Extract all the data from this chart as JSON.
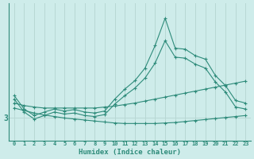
{
  "xlabel": "Humidex (Indice chaleur)",
  "background_color": "#ceecea",
  "line_color": "#2e8b7a",
  "grid_color": "#b8d8d4",
  "x_values": [
    0,
    1,
    2,
    3,
    4,
    5,
    6,
    7,
    8,
    9,
    10,
    11,
    12,
    13,
    14,
    15,
    16,
    17,
    18,
    19,
    20,
    21,
    22,
    23
  ],
  "ytick_labels": [
    "3"
  ],
  "ytick_positions": [
    3.0
  ],
  "series": {
    "curve_max": [
      3.45,
      3.18,
      3.05,
      3.12,
      3.18,
      3.14,
      3.17,
      3.12,
      3.1,
      3.14,
      3.38,
      3.58,
      3.75,
      4.0,
      4.45,
      5.0,
      4.4,
      4.38,
      4.25,
      4.18,
      3.85,
      3.65,
      3.35,
      3.3
    ],
    "curve_mid": [
      3.38,
      3.12,
      2.98,
      3.05,
      3.12,
      3.08,
      3.1,
      3.05,
      3.03,
      3.07,
      3.28,
      3.45,
      3.6,
      3.8,
      4.1,
      4.55,
      4.22,
      4.2,
      4.08,
      4.0,
      3.72,
      3.52,
      3.22,
      3.18
    ],
    "trend_high": [
      3.3,
      3.25,
      3.22,
      3.2,
      3.2,
      3.2,
      3.2,
      3.2,
      3.2,
      3.22,
      3.24,
      3.27,
      3.3,
      3.34,
      3.38,
      3.42,
      3.46,
      3.5,
      3.54,
      3.58,
      3.62,
      3.66,
      3.7,
      3.74
    ],
    "trend_low": [
      3.2,
      3.15,
      3.1,
      3.06,
      3.03,
      3.0,
      2.98,
      2.96,
      2.94,
      2.92,
      2.9,
      2.89,
      2.89,
      2.89,
      2.89,
      2.9,
      2.91,
      2.93,
      2.95,
      2.97,
      2.99,
      3.01,
      3.03,
      3.05
    ]
  },
  "ylim": [
    2.55,
    5.3
  ],
  "xlim": [
    -0.5,
    23.5
  ],
  "figsize": [
    3.2,
    2.0
  ],
  "dpi": 100
}
